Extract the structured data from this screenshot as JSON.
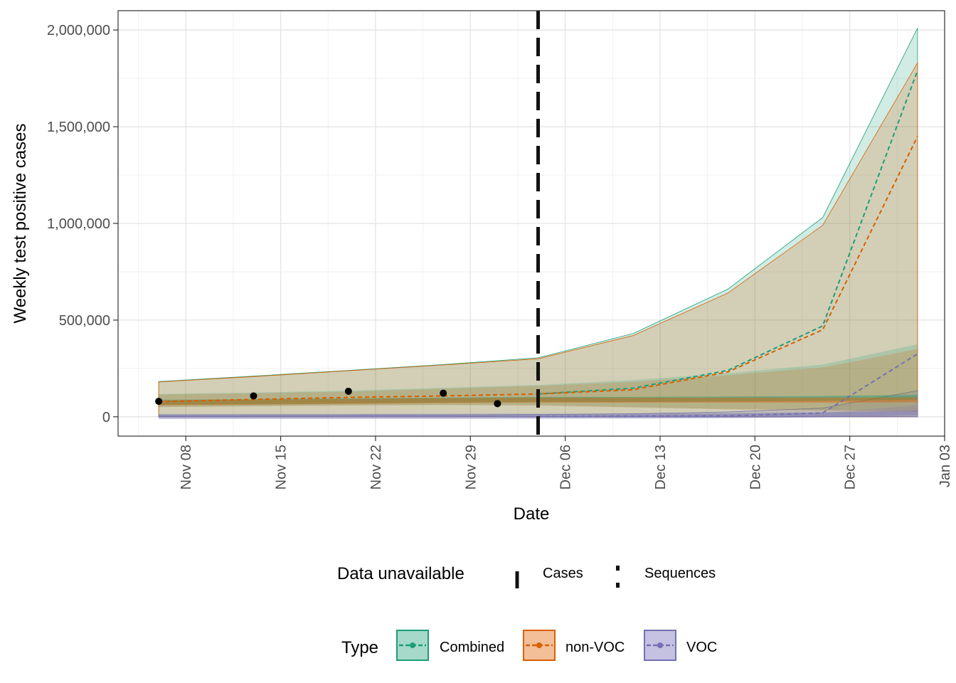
{
  "chart_data": {
    "type": "line",
    "xlabel": "Date",
    "ylabel": "Weekly test positive cases",
    "x_ticks": [
      "Nov 08",
      "Nov 15",
      "Nov 22",
      "Nov 29",
      "Dec 06",
      "Dec 13",
      "Dec 20",
      "Dec 27",
      "Jan 03"
    ],
    "y_ticks": [
      {
        "label": "0",
        "value": 0
      },
      {
        "label": "500,000",
        "value": 500000
      },
      {
        "label": "1,000,000",
        "value": 1000000
      },
      {
        "label": "1,500,000",
        "value": 1500000
      },
      {
        "label": "2,000,000",
        "value": 2000000
      }
    ],
    "xlim": [
      "2020-11-03",
      "2021-01-03"
    ],
    "ylim": [
      -100000,
      2100000
    ],
    "grid": true,
    "cases_unavailable_date": "2020-12-04",
    "observed_cases": [
      {
        "x": "2020-11-06",
        "y": 80000
      },
      {
        "x": "2020-11-13",
        "y": 108000
      },
      {
        "x": "2020-11-20",
        "y": 132000
      },
      {
        "x": "2020-11-27",
        "y": 122000
      },
      {
        "x": "2020-12-01",
        "y": 68000
      }
    ],
    "series": [
      {
        "name": "Combined",
        "color": "#1b9e77",
        "x": [
          "2020-11-06",
          "2020-11-13",
          "2020-11-20",
          "2020-11-27",
          "2020-12-04",
          "2020-12-11",
          "2020-12-18",
          "2020-12-25",
          "2021-01-01"
        ],
        "ribbon_outer": {
          "low": [
            0,
            0,
            0,
            0,
            0,
            0,
            0,
            0,
            0
          ],
          "high": [
            182000,
            210000,
            240000,
            270000,
            305000,
            430000,
            660000,
            1030000,
            2010000
          ]
        },
        "ribbon_inner": {
          "low": [
            50000,
            55000,
            60000,
            62000,
            60000,
            50000,
            40000,
            35000,
            30000
          ],
          "high": [
            118000,
            125000,
            135000,
            150000,
            165000,
            190000,
            225000,
            270000,
            375000
          ]
        },
        "median": [
          75000,
          78000,
          82000,
          86000,
          90000,
          90000,
          92000,
          95000,
          100000
        ],
        "projection": [
          null,
          null,
          null,
          null,
          118000,
          148000,
          240000,
          470000,
          1790000
        ]
      },
      {
        "name": "non-VOC",
        "color": "#d95f02",
        "x": [
          "2020-11-06",
          "2020-11-13",
          "2020-11-20",
          "2020-11-27",
          "2020-12-04",
          "2020-12-11",
          "2020-12-18",
          "2020-12-25",
          "2021-01-01"
        ],
        "ribbon_outer": {
          "low": [
            0,
            0,
            0,
            0,
            0,
            0,
            0,
            0,
            0
          ],
          "high": [
            180000,
            208000,
            238000,
            268000,
            300000,
            420000,
            640000,
            990000,
            1830000
          ]
        },
        "ribbon_inner": {
          "low": [
            50000,
            55000,
            58000,
            60000,
            58000,
            48000,
            38000,
            32000,
            25000
          ],
          "high": [
            115000,
            122000,
            130000,
            145000,
            160000,
            180000,
            215000,
            255000,
            350000
          ]
        },
        "median": [
          72000,
          75000,
          80000,
          84000,
          86000,
          86000,
          86000,
          86000,
          88000
        ],
        "projection": [
          78000,
          90000,
          100000,
          108000,
          118000,
          140000,
          232000,
          450000,
          1450000
        ]
      },
      {
        "name": "VOC",
        "color": "#7570b3",
        "x": [
          "2020-11-06",
          "2020-11-13",
          "2020-11-20",
          "2020-11-27",
          "2020-12-04",
          "2020-12-11",
          "2020-12-18",
          "2020-12-25",
          "2021-01-01"
        ],
        "ribbon_outer": {
          "low": [
            0,
            0,
            0,
            0,
            0,
            0,
            0,
            0,
            0
          ],
          "high": [
            6000,
            7000,
            8000,
            9000,
            11000,
            16000,
            25000,
            45000,
            135000
          ]
        },
        "ribbon_inner": {
          "low": [
            0,
            0,
            0,
            0,
            0,
            0,
            0,
            0,
            0
          ],
          "high": [
            3000,
            3500,
            4000,
            4500,
            5500,
            8000,
            12000,
            20000,
            60000
          ]
        },
        "median": [
          1500,
          1800,
          2200,
          2600,
          3000,
          4000,
          6000,
          10000,
          20000
        ],
        "projection": [
          null,
          null,
          null,
          null,
          2000,
          3000,
          5000,
          20000,
          325000
        ]
      }
    ],
    "legend_unavailable": {
      "title": "Data unavailable",
      "items": [
        {
          "label": "Cases",
          "style": "long-dash"
        },
        {
          "label": "Sequences",
          "style": "dotted"
        }
      ]
    },
    "legend_type": {
      "title": "Type",
      "items": [
        {
          "label": "Combined",
          "color": "#1b9e77",
          "fill": "#a6d9c9"
        },
        {
          "label": "non-VOC",
          "color": "#d95f02",
          "fill": "#f3bf99"
        },
        {
          "label": "VOC",
          "color": "#7570b3",
          "fill": "#c4c2e0"
        }
      ]
    }
  }
}
